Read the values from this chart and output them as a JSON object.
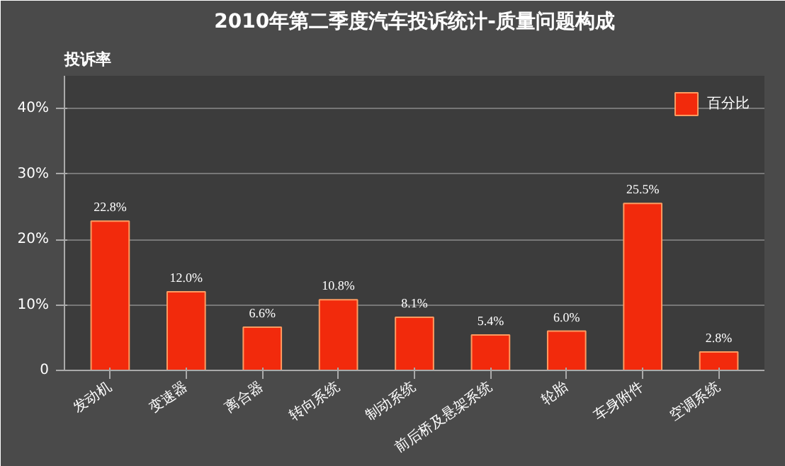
{
  "chart_data": {
    "type": "bar",
    "title": "2010年第二季度汽车投诉统计-质量问题构成",
    "ylabel": "投诉率",
    "categories": [
      "发动机",
      "变速器",
      "离合器",
      "转向系统",
      "制动系统",
      "前后桥及悬架系统",
      "轮胎",
      "车身附件",
      "空调系统"
    ],
    "series": [
      {
        "name": "百分比",
        "color": "#f22a0c",
        "values": [
          22.8,
          12.0,
          6.6,
          10.8,
          8.1,
          5.4,
          6.0,
          25.5,
          2.8
        ]
      }
    ],
    "value_labels": [
      "22.8%",
      "12.0%",
      "6.6%",
      "10.8%",
      "8.1%",
      "5.4%",
      "6.0%",
      "25.5%",
      "2.8%"
    ],
    "ylim": [
      0,
      45
    ],
    "yticks": [
      {
        "value": 0,
        "label": "0"
      },
      {
        "value": 10,
        "label": "10%"
      },
      {
        "value": 20,
        "label": "20%"
      },
      {
        "value": 30,
        "label": "30%"
      },
      {
        "value": 40,
        "label": "40%"
      }
    ],
    "grid": "y",
    "legend": "top right"
  }
}
